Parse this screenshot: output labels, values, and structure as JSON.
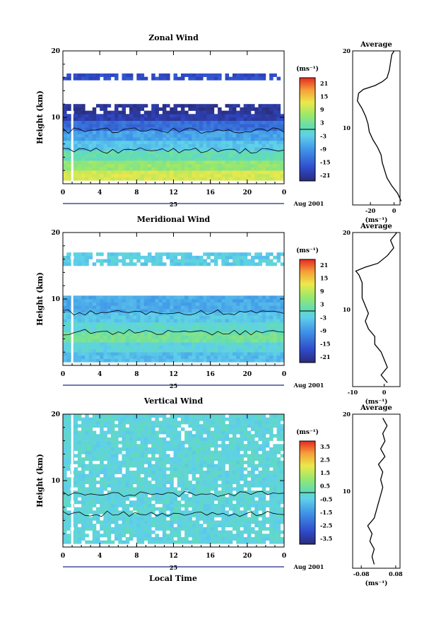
{
  "figure": {
    "common_xlabel": "Local Time",
    "day_label": "25",
    "date_label": "Aug 2001",
    "x_ticks": [
      "0",
      "4",
      "8",
      "12",
      "16",
      "20",
      "0"
    ],
    "y_ticks": [
      "20",
      "10"
    ],
    "ylabel": "Height (km)",
    "avg_title": "Average",
    "cbar_unit": "(ms⁻¹)",
    "avg_unit": "(ms⁻¹)"
  },
  "chart_data": [
    {
      "type": "heatmap",
      "title": "Zonal Wind",
      "ylabel": "Height (km)",
      "xlabel": "",
      "x_range_hours": [
        0,
        24
      ],
      "y_range_km": [
        0,
        20
      ],
      "colorbar": {
        "labels": [
          "21",
          "15",
          "9",
          "3",
          "-3",
          "-9",
          "-15",
          "-21"
        ],
        "range": [
          -24,
          24
        ],
        "zero_line": true
      },
      "bands": [
        {
          "z": [
            0.5,
            2.0
          ],
          "value": 11
        },
        {
          "z": [
            2.0,
            3.5
          ],
          "value": 6
        },
        {
          "z": [
            3.5,
            5.0
          ],
          "value": 1
        },
        {
          "z": [
            5.0,
            6.5
          ],
          "value": -4
        },
        {
          "z": [
            6.5,
            8.0
          ],
          "value": -8
        },
        {
          "z": [
            8.0,
            9.5
          ],
          "value": -14
        },
        {
          "z": [
            9.5,
            10.5
          ],
          "value": -20
        },
        {
          "z": [
            10.5,
            12.0
          ],
          "value": -22
        },
        {
          "z": [
            15.6,
            16.6
          ],
          "value": -18
        }
      ],
      "average": {
        "xlim": [
          -35,
          5
        ],
        "xticks": [
          "-20",
          "0"
        ],
        "profile": [
          [
            0.5,
            6
          ],
          [
            1.5,
            3
          ],
          [
            2.5,
            -2
          ],
          [
            3.5,
            -6
          ],
          [
            4.5,
            -8
          ],
          [
            5.5,
            -10
          ],
          [
            6.5,
            -11
          ],
          [
            7.5,
            -14
          ],
          [
            8.5,
            -18
          ],
          [
            9.5,
            -21
          ],
          [
            10.5,
            -22
          ],
          [
            11.5,
            -24
          ],
          [
            12.5,
            -27
          ],
          [
            13.5,
            -31
          ],
          [
            14.5,
            -30
          ],
          [
            15.0,
            -26
          ],
          [
            15.5,
            -16
          ],
          [
            16.0,
            -10
          ],
          [
            16.5,
            -6
          ],
          [
            17.5,
            -4
          ],
          [
            18.5,
            -3
          ],
          [
            19.5,
            -2
          ],
          [
            20,
            0
          ]
        ]
      }
    },
    {
      "type": "heatmap",
      "title": "Meridional Wind",
      "ylabel": "Height (km)",
      "xlabel": "",
      "x_range_hours": [
        0,
        24
      ],
      "y_range_km": [
        0,
        20
      ],
      "colorbar": {
        "labels": [
          "21",
          "15",
          "9",
          "3",
          "-3",
          "-9",
          "-15",
          "-21"
        ],
        "range": [
          -24,
          24
        ],
        "zero_line": true
      },
      "bands": [
        {
          "z": [
            0.5,
            2.0
          ],
          "value": -5
        },
        {
          "z": [
            2.0,
            3.5
          ],
          "value": -2
        },
        {
          "z": [
            3.5,
            5.0
          ],
          "value": 3
        },
        {
          "z": [
            5.0,
            6.5
          ],
          "value": -1
        },
        {
          "z": [
            6.5,
            8.0
          ],
          "value": -4
        },
        {
          "z": [
            8.0,
            10.5
          ],
          "value": -7
        },
        {
          "z": [
            15.0,
            17.0
          ],
          "value": -3
        }
      ],
      "average": {
        "xlim": [
          -10,
          5
        ],
        "xticks": [
          "-10",
          "0"
        ],
        "profile": [
          [
            0.5,
            1
          ],
          [
            1.5,
            -1
          ],
          [
            2.5,
            1
          ],
          [
            3.5,
            0
          ],
          [
            4.5,
            -1
          ],
          [
            5.5,
            -3
          ],
          [
            6.5,
            -3
          ],
          [
            7.5,
            -5
          ],
          [
            8.5,
            -6
          ],
          [
            9.5,
            -5
          ],
          [
            10.5,
            -6
          ],
          [
            11.5,
            -7
          ],
          [
            12.5,
            -7
          ],
          [
            13.5,
            -7
          ],
          [
            14.5,
            -8
          ],
          [
            15.0,
            -9
          ],
          [
            15.5,
            -6
          ],
          [
            16.0,
            -2
          ],
          [
            17.0,
            1
          ],
          [
            18.0,
            3
          ],
          [
            19.0,
            2
          ],
          [
            20,
            4
          ]
        ]
      }
    },
    {
      "type": "heatmap",
      "title": "Vertical Wind",
      "ylabel": "Height (km)",
      "xlabel": "Local Time",
      "x_range_hours": [
        0,
        24
      ],
      "y_range_km": [
        0,
        20
      ],
      "colorbar": {
        "labels": [
          "3.5",
          "2.5",
          "1.5",
          "0.5",
          "-0.5",
          "-1.5",
          "-2.5",
          "-3.5"
        ],
        "range": [
          -4,
          4
        ],
        "zero_line": true
      },
      "bands": [
        {
          "z": [
            0.5,
            20
          ],
          "value": -0.3
        }
      ],
      "average": {
        "xlim": [
          -0.12,
          0.1
        ],
        "xticks": [
          "-0.08",
          "0.08"
        ],
        "profile": [
          [
            0.5,
            -0.02
          ],
          [
            1.5,
            -0.03
          ],
          [
            2.5,
            -0.02
          ],
          [
            3.5,
            -0.04
          ],
          [
            4.5,
            -0.03
          ],
          [
            5.5,
            -0.05
          ],
          [
            6.5,
            -0.02
          ],
          [
            7.5,
            -0.01
          ],
          [
            8.5,
            0.0
          ],
          [
            9.5,
            0.01
          ],
          [
            10.5,
            0.02
          ],
          [
            11.5,
            0.01
          ],
          [
            12.5,
            0.02
          ],
          [
            13.5,
            0.0
          ],
          [
            14.5,
            0.03
          ],
          [
            15.5,
            0.01
          ],
          [
            16.5,
            0.03
          ],
          [
            17.5,
            0.02
          ],
          [
            18.5,
            0.04
          ],
          [
            19.5,
            0.02
          ]
        ]
      }
    }
  ]
}
